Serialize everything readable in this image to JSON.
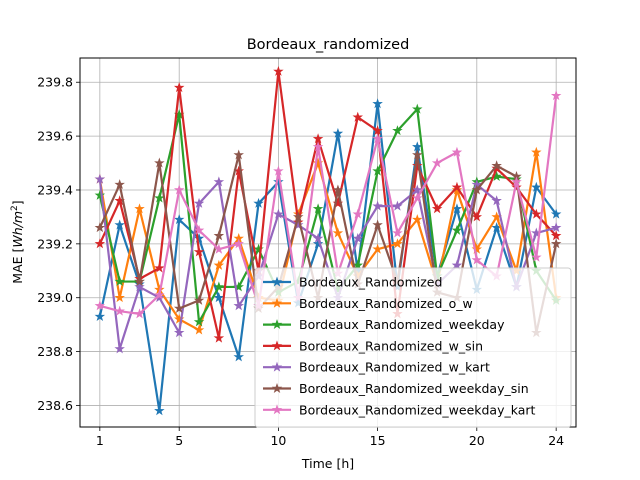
{
  "chart_data": {
    "type": "line",
    "title": "Bordeaux_randomized",
    "xlabel": "Time [h]",
    "ylabel_prefix": "MAE [",
    "ylabel_unit_main": "Wh/m",
    "ylabel_unit_exp": "2",
    "ylabel_suffix": "]",
    "xlim": [
      0.0,
      25.0
    ],
    "ylim": [
      238.52,
      239.89
    ],
    "xticks": [
      1,
      5,
      10,
      15,
      20,
      24
    ],
    "yticks": [
      238.6,
      238.8,
      239.0,
      239.2,
      239.4,
      239.6,
      239.8
    ],
    "grid": true,
    "legend_position": "lower-right",
    "marker": "star",
    "series": [
      {
        "name": "Bordeaux_Randomized",
        "color": "#1f77b4",
        "x": [
          1,
          2,
          3,
          4,
          5,
          6,
          7,
          8,
          9,
          10,
          11,
          12,
          13,
          14,
          15,
          16,
          17,
          18,
          19,
          20,
          21,
          22,
          23,
          24
        ],
        "y": [
          238.93,
          239.27,
          239.05,
          238.58,
          239.29,
          239.22,
          239.0,
          238.78,
          239.35,
          239.43,
          238.98,
          239.2,
          239.61,
          239.1,
          239.72,
          239.04,
          239.56,
          239.08,
          239.33,
          239.03,
          239.26,
          239.04,
          239.41,
          239.31
        ]
      },
      {
        "name": "Bordeaux_Randomized_o_w",
        "color": "#ff7f0e",
        "x": [
          1,
          2,
          3,
          4,
          5,
          6,
          7,
          8,
          9,
          10,
          11,
          12,
          13,
          14,
          15,
          16,
          17,
          18,
          19,
          20,
          21,
          22,
          23,
          24
        ],
        "y": [
          239.44,
          239.0,
          239.33,
          239.03,
          238.92,
          238.88,
          239.12,
          239.22,
          239.0,
          238.99,
          239.31,
          239.5,
          239.24,
          239.08,
          239.18,
          239.2,
          239.29,
          239.05,
          239.4,
          239.18,
          239.3,
          239.1,
          239.54,
          239.0
        ]
      },
      {
        "name": "Bordeaux_Randomized_weekday",
        "color": "#2ca02c",
        "x": [
          1,
          2,
          3,
          4,
          5,
          6,
          7,
          8,
          9,
          10,
          11,
          12,
          13,
          14,
          15,
          16,
          17,
          18,
          19,
          20,
          21,
          22,
          23,
          24
        ],
        "y": [
          239.38,
          239.06,
          239.06,
          239.37,
          239.68,
          238.91,
          239.04,
          239.04,
          239.18,
          239.02,
          239.06,
          239.33,
          239.03,
          239.12,
          239.47,
          239.62,
          239.7,
          239.08,
          239.25,
          239.43,
          239.45,
          239.44,
          239.1,
          238.99
        ]
      },
      {
        "name": "Bordeaux_Randomized_w_sin",
        "color": "#d62728",
        "x": [
          1,
          2,
          3,
          4,
          5,
          6,
          7,
          8,
          9,
          10,
          11,
          12,
          13,
          14,
          15,
          16,
          17,
          18,
          19,
          20,
          21,
          22,
          23,
          24
        ],
        "y": [
          239.2,
          239.36,
          239.07,
          239.11,
          239.78,
          239.17,
          238.85,
          239.47,
          239.1,
          239.84,
          239.28,
          239.59,
          239.35,
          239.67,
          239.62,
          238.94,
          239.49,
          239.33,
          239.41,
          239.3,
          239.48,
          239.41,
          239.31,
          239.23
        ]
      },
      {
        "name": "Bordeaux_Randomized_w_kart",
        "color": "#9467bd",
        "x": [
          1,
          2,
          3,
          4,
          5,
          6,
          7,
          8,
          9,
          10,
          11,
          12,
          13,
          14,
          15,
          16,
          17,
          18,
          19,
          20,
          21,
          22,
          23,
          24
        ],
        "y": [
          239.44,
          238.81,
          239.04,
          239.0,
          238.87,
          239.35,
          239.43,
          238.97,
          239.08,
          239.31,
          239.27,
          239.22,
          239.0,
          239.22,
          239.34,
          239.34,
          239.4,
          239.05,
          239.12,
          239.42,
          239.36,
          239.04,
          239.24,
          239.26
        ]
      },
      {
        "name": "Bordeaux_Randomized_weekday_sin",
        "color": "#8c564b",
        "x": [
          1,
          2,
          3,
          4,
          5,
          6,
          7,
          8,
          9,
          10,
          11,
          12,
          13,
          14,
          15,
          16,
          17,
          18,
          19,
          20,
          21,
          22,
          23,
          24
        ],
        "y": [
          239.26,
          239.42,
          239.06,
          239.5,
          238.96,
          238.99,
          239.23,
          239.53,
          238.96,
          239.04,
          239.3,
          239.0,
          239.4,
          239.05,
          239.27,
          239.06,
          239.53,
          239.02,
          239.0,
          239.4,
          239.49,
          239.45,
          238.87,
          239.2
        ]
      },
      {
        "name": "Bordeaux_Randomized_weekday_kart",
        "color": "#e377c2",
        "x": [
          1,
          2,
          3,
          4,
          5,
          6,
          7,
          8,
          9,
          10,
          11,
          12,
          13,
          14,
          15,
          16,
          17,
          18,
          19,
          20,
          21,
          22,
          23,
          24
        ],
        "y": [
          238.97,
          238.95,
          238.94,
          239.01,
          239.4,
          239.25,
          239.18,
          239.2,
          238.97,
          239.47,
          239.0,
          239.56,
          239.09,
          239.31,
          239.59,
          239.24,
          239.37,
          239.5,
          239.54,
          239.14,
          239.08,
          239.43,
          239.15,
          239.75
        ]
      }
    ]
  }
}
